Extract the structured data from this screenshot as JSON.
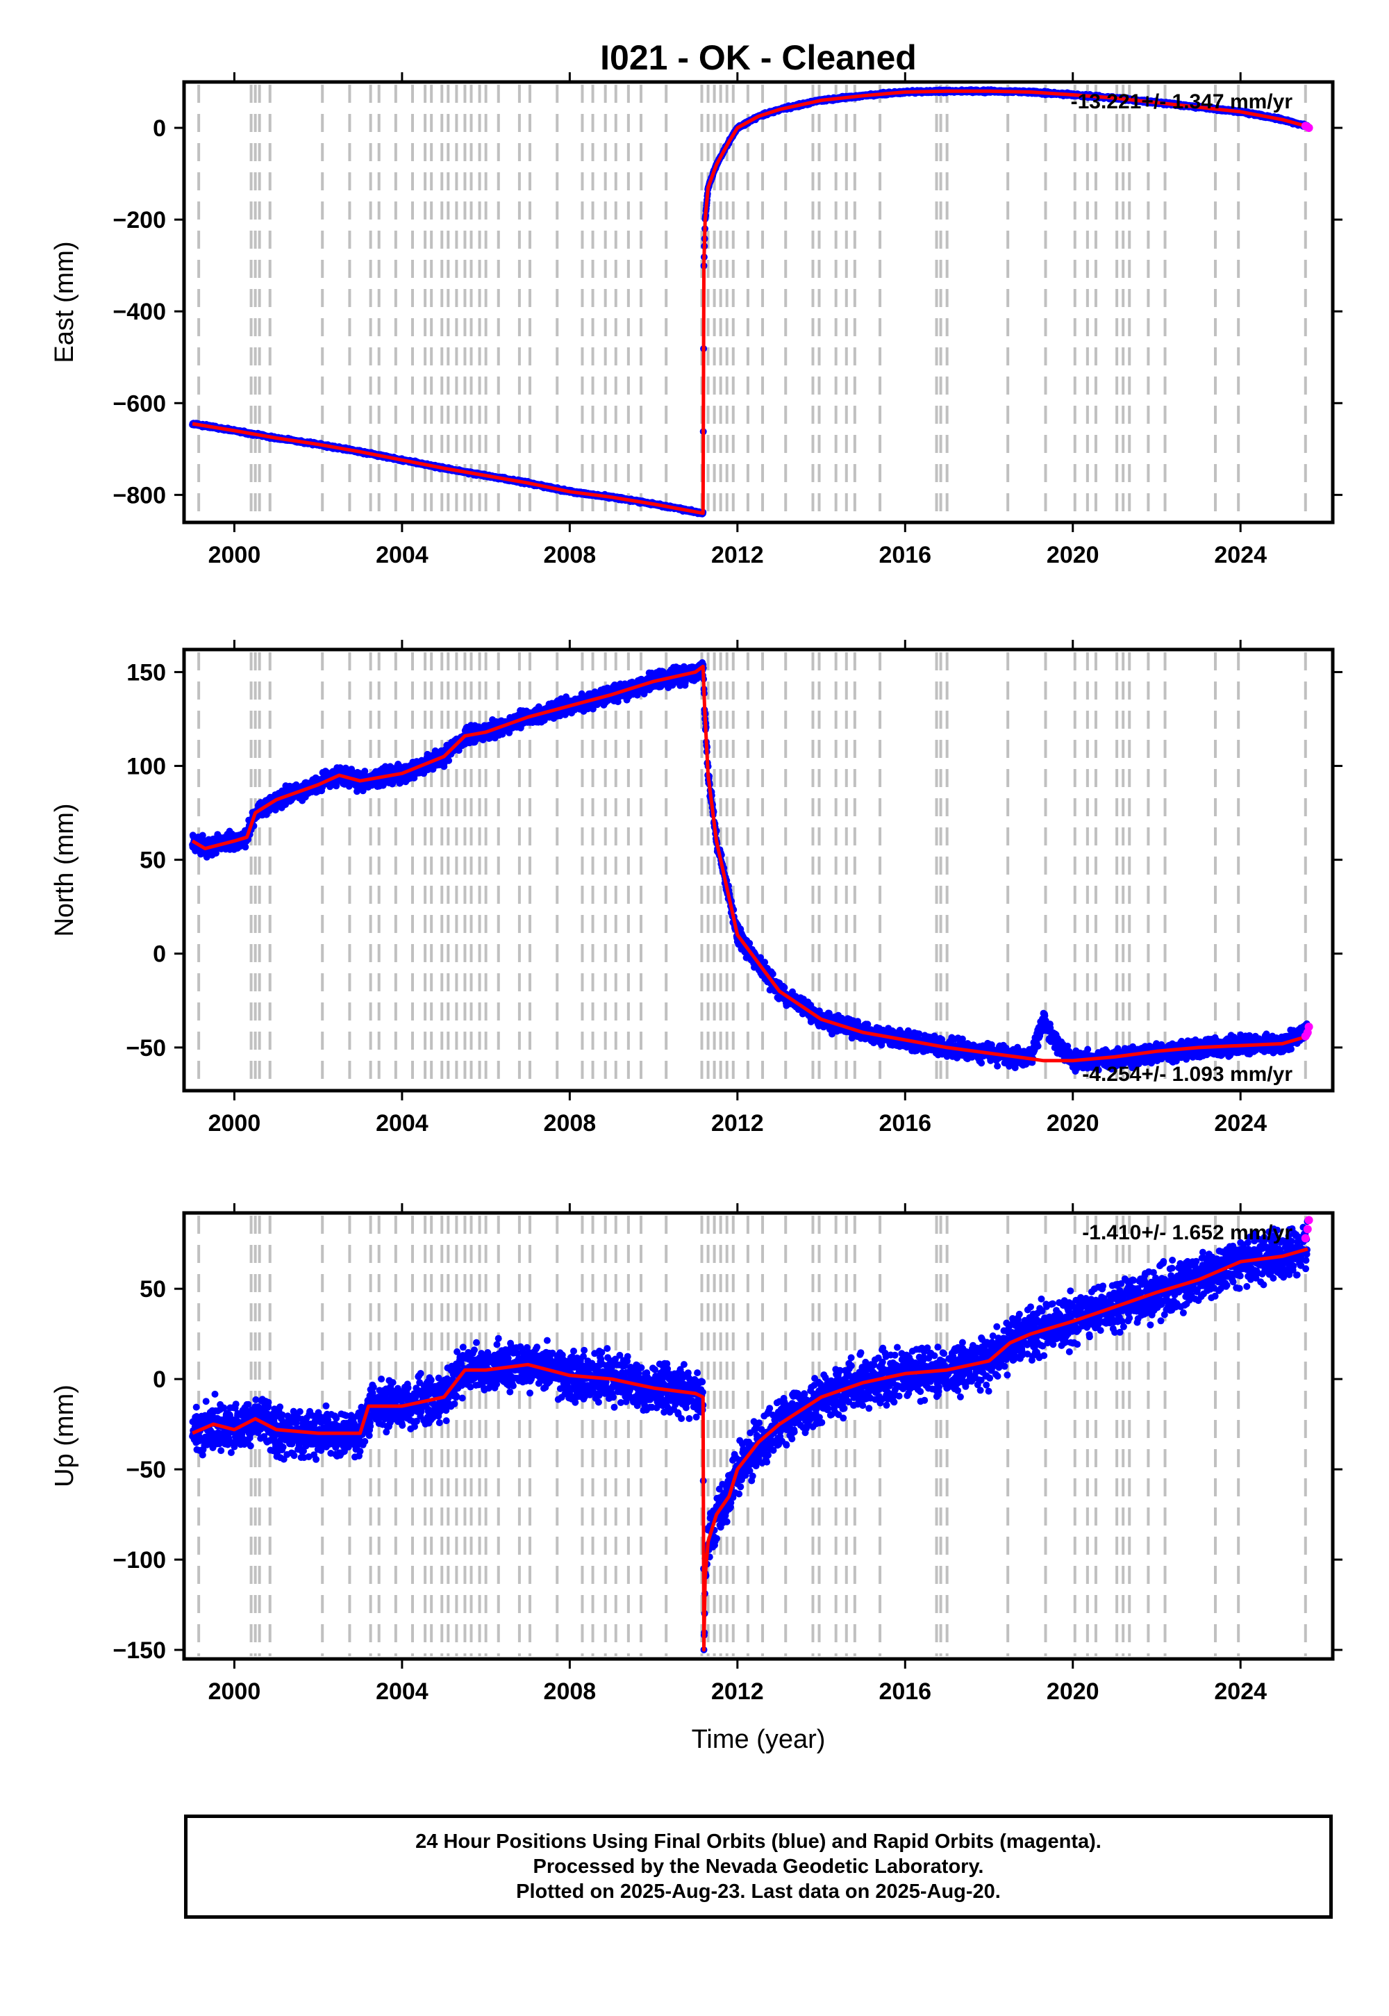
{
  "chart_data": [
    {
      "type": "scatter",
      "title": "I021  - OK - Cleaned",
      "ylabel": "East (mm)",
      "xlabel": "",
      "xlim": [
        1998.8,
        2026.2
      ],
      "ylim": [
        -860,
        100
      ],
      "xticks": [
        2000,
        2004,
        2008,
        2012,
        2016,
        2020,
        2024
      ],
      "yticks": [
        0,
        -200,
        -400,
        -600,
        -800
      ],
      "annotation": "-13.221+/- 1.347 mm/yr",
      "grid": "dashed vertical lines at antenna/equipment change dates",
      "series": [
        {
          "name": "",
          "color": "#0000ff",
          "x": [
            1999.0,
            2000.0,
            2001.0,
            2002.0,
            2003.0,
            2004.0,
            2005.0,
            2006.0,
            2007.0,
            2008.0,
            2009.0,
            2010.0,
            2011.18,
            2011.2,
            2011.23,
            2011.3,
            2011.5,
            2011.8,
            2012.0,
            2012.5,
            2013.0,
            2014.0,
            2015.0,
            2016.0,
            2017.0,
            2018.0,
            2019.0,
            2020.0,
            2021.0,
            2022.0,
            2023.0,
            2024.0,
            2025.0,
            2025.6
          ],
          "y": [
            -645,
            -660,
            -676,
            -690,
            -706,
            -724,
            -742,
            -758,
            -774,
            -793,
            -805,
            -820,
            -840,
            -300,
            -200,
            -130,
            -80,
            -30,
            0,
            25,
            40,
            60,
            70,
            78,
            80,
            80,
            78,
            72,
            65,
            55,
            45,
            35,
            18,
            3
          ]
        }
      ],
      "model_line": {
        "color": "#ff0000",
        "x": [
          1999.0,
          2000.0,
          2001.0,
          2002.0,
          2003.0,
          2004.0,
          2005.0,
          2006.0,
          2007.0,
          2008.0,
          2009.0,
          2010.0,
          2011.18,
          2011.2,
          2011.23,
          2011.3,
          2011.5,
          2011.8,
          2012.0,
          2012.5,
          2013.0,
          2014.0,
          2015.0,
          2016.0,
          2017.0,
          2018.0,
          2019.0,
          2020.0,
          2021.0,
          2022.0,
          2023.0,
          2024.0,
          2025.0,
          2025.6
        ],
        "y": [
          -645,
          -660,
          -676,
          -690,
          -706,
          -724,
          -742,
          -758,
          -774,
          -793,
          -805,
          -820,
          -840,
          -300,
          -200,
          -130,
          -80,
          -30,
          0,
          25,
          40,
          60,
          70,
          78,
          80,
          80,
          78,
          72,
          65,
          55,
          45,
          35,
          18,
          3
        ]
      },
      "rapid_points": {
        "color": "#ff00ff",
        "x": [
          2025.55,
          2025.6,
          2025.63
        ],
        "y": [
          4,
          2,
          0
        ]
      }
    },
    {
      "type": "scatter",
      "title": "",
      "ylabel": "North (mm)",
      "xlabel": "",
      "xlim": [
        1998.8,
        2026.2
      ],
      "ylim": [
        -73,
        162
      ],
      "xticks": [
        2000,
        2004,
        2008,
        2012,
        2016,
        2020,
        2024
      ],
      "yticks": [
        150,
        100,
        50,
        0,
        -50
      ],
      "annotation": "-4.254+/- 1.093 mm/yr",
      "series": [
        {
          "name": "",
          "color": "#0000ff",
          "x": [
            1999.0,
            1999.3,
            2000.0,
            2000.3,
            2000.5,
            2001.0,
            2002.0,
            2002.5,
            2003.0,
            2004.0,
            2005.0,
            2005.5,
            2006.0,
            2007.0,
            2008.0,
            2009.0,
            2010.0,
            2011.0,
            2011.18,
            2011.22,
            2011.3,
            2011.5,
            2011.8,
            2012.0,
            2012.5,
            2013.0,
            2014.0,
            2015.0,
            2016.0,
            2017.0,
            2018.0,
            2019.0,
            2019.3,
            2019.5,
            2020.0,
            2021.0,
            2022.0,
            2023.0,
            2024.0,
            2025.0,
            2025.6
          ],
          "y": [
            60,
            56,
            60,
            62,
            75,
            82,
            90,
            95,
            92,
            96,
            105,
            116,
            118,
            126,
            132,
            138,
            145,
            150,
            153,
            130,
            95,
            60,
            30,
            10,
            -5,
            -20,
            -35,
            -42,
            -46,
            -50,
            -53,
            -56,
            -35,
            -45,
            -57,
            -56,
            -53,
            -51,
            -49,
            -48,
            -41
          ]
        }
      ],
      "model_line": {
        "color": "#ff0000",
        "x": [
          1999.0,
          1999.3,
          2000.0,
          2000.3,
          2000.5,
          2001.0,
          2002.0,
          2002.5,
          2003.0,
          2004.0,
          2005.0,
          2005.5,
          2006.0,
          2007.0,
          2008.0,
          2009.0,
          2010.0,
          2011.0,
          2011.18,
          2011.22,
          2011.3,
          2011.5,
          2011.8,
          2012.0,
          2012.5,
          2013.0,
          2014.0,
          2015.0,
          2016.0,
          2017.0,
          2018.0,
          2019.0,
          2019.3,
          2019.5,
          2020.0,
          2021.0,
          2022.0,
          2023.0,
          2024.0,
          2025.0,
          2025.6
        ],
        "y": [
          60,
          56,
          60,
          62,
          75,
          82,
          90,
          95,
          92,
          96,
          105,
          116,
          118,
          126,
          132,
          138,
          145,
          150,
          153,
          130,
          95,
          60,
          30,
          10,
          -5,
          -20,
          -35,
          -42,
          -46,
          -50,
          -53,
          -56,
          -57,
          -57,
          -57,
          -55,
          -52,
          -50,
          -49,
          -48,
          -44
        ]
      },
      "rapid_points": {
        "color": "#ff00ff",
        "x": [
          2025.55,
          2025.6,
          2025.63
        ],
        "y": [
          -44,
          -42,
          -39
        ]
      }
    },
    {
      "type": "scatter",
      "title": "",
      "ylabel": "Up (mm)",
      "xlabel": "Time (year)",
      "xlim": [
        1998.8,
        2026.2
      ],
      "ylim": [
        -155,
        92
      ],
      "xticks": [
        2000,
        2004,
        2008,
        2012,
        2016,
        2020,
        2024
      ],
      "yticks": [
        50,
        0,
        -50,
        -100,
        -150
      ],
      "annotation": "-1.410+/- 1.652 mm/yr",
      "series": [
        {
          "name": "",
          "color": "#0000ff",
          "x": [
            1999.0,
            1999.5,
            2000.0,
            2000.5,
            2001.0,
            2002.0,
            2003.0,
            2003.2,
            2004.0,
            2005.0,
            2005.5,
            2006.0,
            2007.0,
            2008.0,
            2009.0,
            2010.0,
            2011.0,
            2011.18,
            2011.2,
            2011.23,
            2011.3,
            2011.5,
            2011.8,
            2012.0,
            2012.5,
            2013.0,
            2014.0,
            2015.0,
            2016.0,
            2017.0,
            2018.0,
            2018.5,
            2019.0,
            2020.0,
            2021.0,
            2022.0,
            2023.0,
            2024.0,
            2025.0,
            2025.6
          ],
          "y": [
            -30,
            -25,
            -28,
            -22,
            -28,
            -30,
            -30,
            -15,
            -15,
            -10,
            5,
            5,
            8,
            2,
            0,
            -5,
            -8,
            -10,
            -150,
            -110,
            -90,
            -75,
            -65,
            -50,
            -35,
            -25,
            -10,
            -2,
            3,
            5,
            10,
            20,
            25,
            32,
            40,
            48,
            55,
            65,
            68,
            75
          ]
        }
      ],
      "model_line": {
        "color": "#ff0000",
        "x": [
          1999.0,
          1999.5,
          2000.0,
          2000.5,
          2001.0,
          2002.0,
          2003.0,
          2003.2,
          2004.0,
          2005.0,
          2005.5,
          2006.0,
          2007.0,
          2008.0,
          2009.0,
          2010.0,
          2011.0,
          2011.18,
          2011.2,
          2011.23,
          2011.3,
          2011.5,
          2011.8,
          2012.0,
          2012.5,
          2013.0,
          2014.0,
          2015.0,
          2016.0,
          2017.0,
          2018.0,
          2018.5,
          2019.0,
          2020.0,
          2021.0,
          2022.0,
          2023.0,
          2024.0,
          2025.0,
          2025.6
        ],
        "y": [
          -30,
          -25,
          -28,
          -22,
          -28,
          -30,
          -30,
          -15,
          -15,
          -10,
          5,
          5,
          8,
          2,
          0,
          -5,
          -8,
          -10,
          -150,
          -110,
          -90,
          -75,
          -65,
          -50,
          -35,
          -25,
          -10,
          -2,
          3,
          5,
          10,
          20,
          25,
          32,
          40,
          48,
          55,
          65,
          68,
          72
        ]
      },
      "rapid_points": {
        "color": "#ff00ff",
        "x": [
          2025.55,
          2025.6,
          2025.63
        ],
        "y": [
          78,
          83,
          88
        ]
      }
    }
  ],
  "step_dates": [
    1999.15,
    2000.4,
    2000.5,
    2000.6,
    2000.85,
    2002.1,
    2002.75,
    2003.25,
    2003.45,
    2003.85,
    2004.25,
    2004.55,
    2004.7,
    2004.95,
    2005.1,
    2005.3,
    2005.5,
    2005.65,
    2005.85,
    2006.0,
    2006.3,
    2006.8,
    2007.05,
    2007.7,
    2008.3,
    2008.55,
    2008.85,
    2009.1,
    2009.4,
    2009.7,
    2010.3,
    2011.15,
    2011.3,
    2011.45,
    2011.6,
    2011.75,
    2011.9,
    2012.25,
    2012.6,
    2013.15,
    2013.8,
    2013.95,
    2014.35,
    2014.6,
    2014.8,
    2015.4,
    2016.75,
    2016.85,
    2017.0,
    2018.45,
    2019.35,
    2020.05,
    2020.35,
    2020.55,
    2021.05,
    2021.2,
    2021.35,
    2021.8,
    2022.2,
    2023.4,
    2023.95,
    2025.55
  ],
  "footer": {
    "line1": "24 Hour Positions Using Final Orbits (blue) and Rapid Orbits (magenta).",
    "line2": "Processed by the Nevada Geodetic Laboratory.",
    "line3": "Plotted on 2025-Aug-23. Last data on 2025-Aug-20."
  },
  "colors": {
    "final": "#0000ff",
    "model": "#ff0000",
    "rapid": "#ff00ff",
    "steps": "#c0c0c0"
  }
}
